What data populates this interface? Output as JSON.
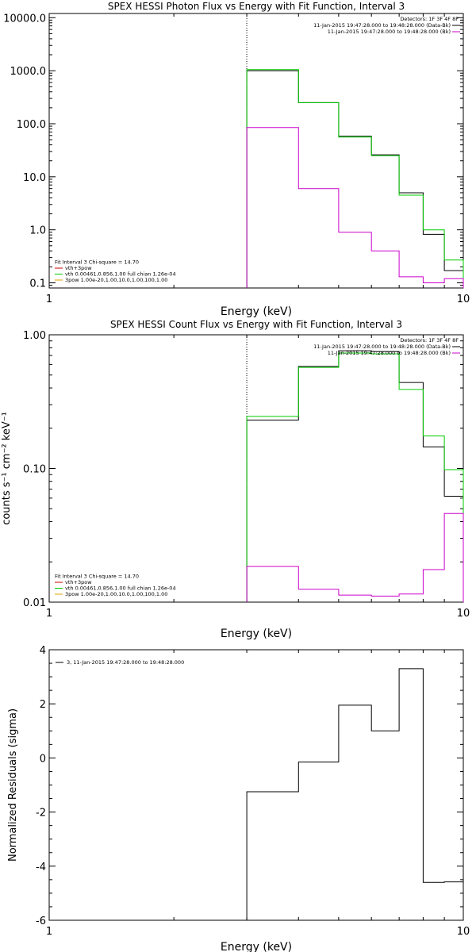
{
  "chart_data": [
    {
      "type": "line",
      "title": "SPEX HESSI Photon Flux vs Energy with Fit Function, Interval 3",
      "xlabel": "Energy (keV)",
      "ylabel": "",
      "xscale": "log",
      "yscale": "log",
      "xlim": [
        1,
        10
      ],
      "ylim": [
        0.08,
        12000
      ],
      "xticks": [
        {
          "v": 1,
          "label": "1"
        },
        {
          "v": 10,
          "label": "10"
        }
      ],
      "yticks": [
        {
          "v": 0.1,
          "label": "0.1"
        },
        {
          "v": 1,
          "label": "1.0"
        },
        {
          "v": 10,
          "label": "10.0"
        },
        {
          "v": 100,
          "label": "100.0"
        },
        {
          "v": 1000,
          "label": "1000.0"
        },
        {
          "v": 10000,
          "label": "10000.0"
        }
      ],
      "vline": 3.0,
      "legend_top_right": [
        {
          "text": "Detectors: 1F 3F 4F 8F",
          "color": ""
        },
        {
          "text": "11-Jan-2015 19:47:28.000 to 19:48:28.000 (Data-Bk)",
          "color": "#000000"
        },
        {
          "text": "11-Jan-2015 19:47:28.000 to 19:48:28.000 (Bk)",
          "color": "#cc00cc"
        }
      ],
      "legend_bottom_left": [
        {
          "text": "Fit Interval 3   Chi-square = 14.70",
          "color": ""
        },
        {
          "text": "vth+3pow",
          "color": "#cc0000"
        },
        {
          "text": "vth 0.00461,0.856,1.00  full chian 1.26e-04",
          "color": "#00cc00"
        },
        {
          "text": "3pow 1.00e-20,1.00,10.0,1.00,100,1.00",
          "color": "#e0a000"
        }
      ],
      "bin_edges": [
        3.0,
        3.5,
        4.0,
        4.5,
        5.0,
        5.5,
        6.0,
        6.5,
        7.0,
        7.5,
        8.0,
        9.0,
        10.0
      ],
      "series": [
        {
          "name": "Data-Bk",
          "color": "#000000",
          "values": [
            1000,
            1000,
            250,
            250,
            58,
            58,
            26,
            26,
            5.0,
            5.0,
            0.82,
            0.17
          ]
        },
        {
          "name": "vth+3pow",
          "color": "#00cc00",
          "values": [
            1050,
            1050,
            250,
            250,
            56,
            56,
            25,
            25,
            4.5,
            4.5,
            1.0,
            0.27
          ]
        },
        {
          "name": "Bk",
          "color": "#cc00cc",
          "values": [
            85,
            85,
            6.0,
            6.0,
            0.9,
            0.9,
            0.4,
            0.4,
            0.13,
            0.13,
            0.1,
            0.12
          ]
        }
      ]
    },
    {
      "type": "line",
      "title": "SPEX HESSI Count Flux vs Energy with Fit Function, Interval 3",
      "xlabel": "Energy (keV)",
      "ylabel": "counts s⁻¹ cm⁻² keV⁻¹",
      "xscale": "log",
      "yscale": "log",
      "xlim": [
        1,
        10
      ],
      "ylim": [
        0.01,
        1.0
      ],
      "xticks": [
        {
          "v": 1,
          "label": "1"
        },
        {
          "v": 10,
          "label": "10"
        }
      ],
      "yticks": [
        {
          "v": 0.01,
          "label": "0.01"
        },
        {
          "v": 0.1,
          "label": "0.10"
        },
        {
          "v": 1.0,
          "label": "1.00"
        }
      ],
      "vline": 3.0,
      "legend_top_right": [
        {
          "text": "Detectors: 1F 3F 4F 8F",
          "color": ""
        },
        {
          "text": "11-Jan-2015 19:47:28.000 to 19:48:28.000 (Data-Bk)",
          "color": "#000000"
        },
        {
          "text": "11-Jan-2015 19:47:28.000 to 19:48:28.000 (Bk)",
          "color": "#cc00cc"
        }
      ],
      "legend_bottom_left": [
        {
          "text": "Fit Interval 3   Chi-square = 14.70",
          "color": ""
        },
        {
          "text": "vth+3pow",
          "color": "#cc0000"
        },
        {
          "text": "vth 0.00461,0.856,1.00  full chian 1.26e-04",
          "color": "#00cc00"
        },
        {
          "text": "3pow 1.00e-20,1.00,10.0,1.00,100,1.00",
          "color": "#e0a000"
        }
      ],
      "bin_edges": [
        3.0,
        3.5,
        4.0,
        4.5,
        5.0,
        5.5,
        6.0,
        6.5,
        7.0,
        7.5,
        8.0,
        9.0,
        10.0
      ],
      "series": [
        {
          "name": "Data-Bk",
          "color": "#000000",
          "values": [
            0.23,
            0.23,
            0.58,
            0.58,
            0.76,
            0.76,
            0.75,
            0.75,
            0.44,
            0.44,
            0.145,
            0.062
          ]
        },
        {
          "name": "vth+3pow",
          "color": "#00cc00",
          "values": [
            0.245,
            0.245,
            0.57,
            0.57,
            0.73,
            0.73,
            0.72,
            0.72,
            0.39,
            0.39,
            0.175,
            0.098
          ]
        },
        {
          "name": "Bk",
          "color": "#cc00cc",
          "values": [
            0.0185,
            0.0185,
            0.0125,
            0.0125,
            0.0113,
            0.0113,
            0.0111,
            0.0111,
            0.0115,
            0.0115,
            0.0175,
            0.046
          ]
        }
      ]
    },
    {
      "type": "line",
      "title": "",
      "xlabel": "Energy (keV)",
      "ylabel": "Normalized Residuals (sigma)",
      "xscale": "log",
      "yscale": "linear",
      "xlim": [
        1,
        10
      ],
      "ylim": [
        -6,
        4
      ],
      "xticks": [
        {
          "v": 1,
          "label": "1"
        },
        {
          "v": 10,
          "label": "10"
        }
      ],
      "yticks": [
        {
          "v": -6,
          "label": "-6"
        },
        {
          "v": -4,
          "label": "-4"
        },
        {
          "v": -2,
          "label": "-2"
        },
        {
          "v": 0,
          "label": "0"
        },
        {
          "v": 2,
          "label": "2"
        },
        {
          "v": 4,
          "label": "4"
        }
      ],
      "vline": null,
      "legend_top_right": [],
      "legend_bottom_left": [],
      "legend_top_left": [
        {
          "text": "3, 11-Jan-2015 19:47:28.000 to 19:48:28.000",
          "color": "#000000"
        }
      ],
      "bin_edges": [
        3.0,
        3.5,
        4.0,
        4.5,
        5.0,
        5.5,
        6.0,
        6.5,
        7.0,
        7.5,
        8.0,
        9.0,
        10.0
      ],
      "series": [
        {
          "name": "3, 11-Jan-2015 19:47:28.000 to 19:48:28.000",
          "color": "#000000",
          "values": [
            -1.25,
            -1.25,
            -0.15,
            -0.15,
            1.95,
            1.95,
            1.0,
            1.0,
            3.3,
            3.3,
            -4.6,
            -4.58
          ]
        }
      ]
    }
  ]
}
